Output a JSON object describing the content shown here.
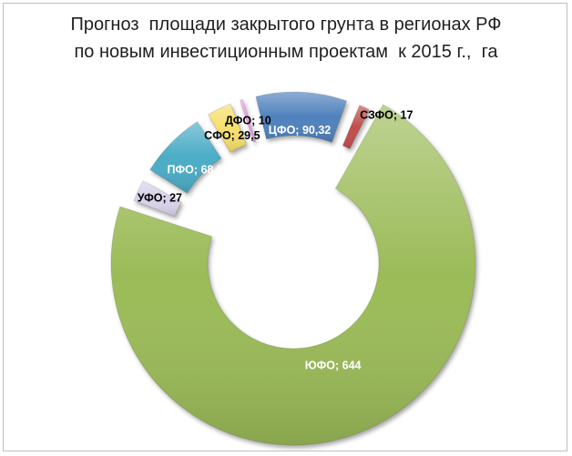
{
  "chart_data": {
    "type": "pie",
    "title_lines": [
      "Прогноз  площади закрытого грунта в регионах РФ",
      "по новым инвестиционным проектам  к 2015 г.,  га"
    ],
    "slices": [
      {
        "label": "ЮФО; 644",
        "name": "ЮФО",
        "value": 644,
        "color": "#9bbb59",
        "text_color": "#ffffff"
      },
      {
        "label": "УФО; 27",
        "name": "УФО",
        "value": 27,
        "color": "#d9d2ea",
        "text_color": "#000000"
      },
      {
        "label": "ПФО; 68,51",
        "name": "ПФО",
        "value": 68.51,
        "color": "#4bacc6",
        "text_color": "#ffffff"
      },
      {
        "label": "СФО; 29,5",
        "name": "СФО",
        "value": 29.5,
        "color": "#f6df6b",
        "text_color": "#000000"
      },
      {
        "label": "ДФО; 10",
        "name": "ДФО",
        "value": 10,
        "color": "#e79de8",
        "text_color": "#000000"
      },
      {
        "label": "ЦФО; 90,32",
        "name": "ЦФО",
        "value": 90.32,
        "color": "#4f81bd",
        "text_color": "#ffffff"
      },
      {
        "label": "СЗФО; 17",
        "name": "СЗФО",
        "value": 17,
        "color": "#c0504d",
        "text_color": "#000000"
      }
    ]
  }
}
